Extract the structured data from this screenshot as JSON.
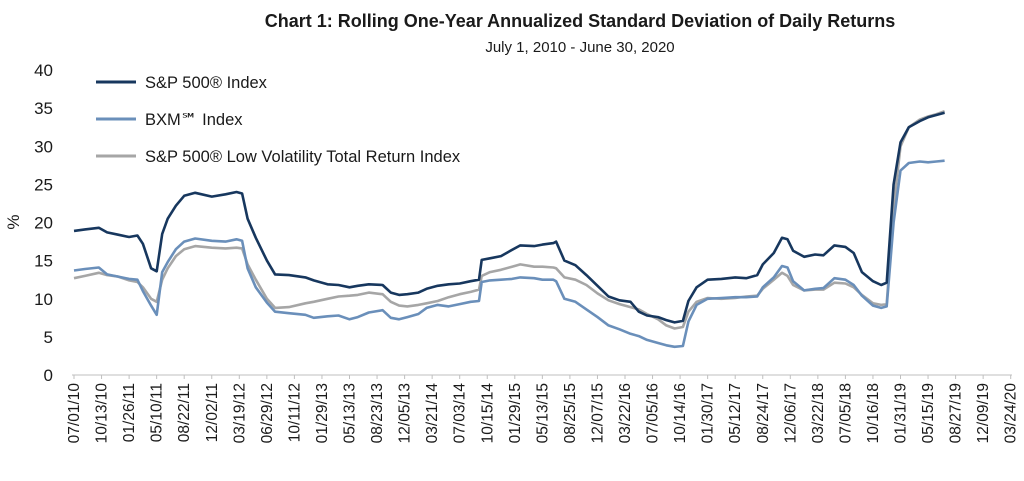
{
  "chart_data": {
    "type": "line",
    "title": "Chart 1: Rolling One-Year Annualized Standard Deviation of Daily Returns",
    "subtitle": "July 1, 2010 - June 30, 2020",
    "ylabel": "%",
    "xlabel": "",
    "ylim": [
      0,
      40
    ],
    "yticks": [
      0,
      5,
      10,
      15,
      20,
      25,
      30,
      35,
      40
    ],
    "grid": false,
    "legend_position": "top-left",
    "x_tick_labels": [
      "07/01/10",
      "10/13/10",
      "01/26/11",
      "05/10/11",
      "08/22/11",
      "12/02/11",
      "03/19/12",
      "06/29/12",
      "10/11/12",
      "01/29/13",
      "05/13/13",
      "08/23/13",
      "12/05/13",
      "03/21/14",
      "07/03/14",
      "10/15/14",
      "01/29/15",
      "05/13/15",
      "08/25/15",
      "12/07/15",
      "03/22/16",
      "07/05/16",
      "10/14/16",
      "01/30/17",
      "05/12/17",
      "08/24/17",
      "12/06/17",
      "03/22/18",
      "07/05/18",
      "10/16/18",
      "01/31/19",
      "05/15/19",
      "08/27/19",
      "12/09/19",
      "03/24/20"
    ],
    "series": [
      {
        "name": "S&P 500® Index",
        "color": "#17375e",
        "points": [
          [
            0,
            18.9
          ],
          [
            0.4,
            19.1
          ],
          [
            0.9,
            19.3
          ],
          [
            1.2,
            18.7
          ],
          [
            1.6,
            18.4
          ],
          [
            2,
            18.1
          ],
          [
            2.3,
            18.3
          ],
          [
            2.5,
            17.2
          ],
          [
            2.8,
            14.0
          ],
          [
            3.0,
            13.6
          ],
          [
            3.2,
            18.5
          ],
          [
            3.4,
            20.5
          ],
          [
            3.7,
            22.2
          ],
          [
            4,
            23.5
          ],
          [
            4.4,
            23.9
          ],
          [
            5,
            23.4
          ],
          [
            5.5,
            23.7
          ],
          [
            5.9,
            24.0
          ],
          [
            6.1,
            23.8
          ],
          [
            6.3,
            20.5
          ],
          [
            6.6,
            18.0
          ],
          [
            7,
            15.0
          ],
          [
            7.3,
            13.2
          ],
          [
            7.8,
            13.1
          ],
          [
            8.4,
            12.8
          ],
          [
            8.7,
            12.4
          ],
          [
            9.2,
            11.9
          ],
          [
            9.6,
            11.8
          ],
          [
            10,
            11.5
          ],
          [
            10.3,
            11.7
          ],
          [
            10.7,
            11.9
          ],
          [
            11.2,
            11.8
          ],
          [
            11.5,
            10.8
          ],
          [
            11.8,
            10.5
          ],
          [
            12.1,
            10.6
          ],
          [
            12.5,
            10.8
          ],
          [
            12.8,
            11.3
          ],
          [
            13.2,
            11.7
          ],
          [
            13.6,
            11.9
          ],
          [
            14,
            12.0
          ],
          [
            14.4,
            12.3
          ],
          [
            14.7,
            12.5
          ],
          [
            14.8,
            15.1
          ],
          [
            15.1,
            15.3
          ],
          [
            15.5,
            15.6
          ],
          [
            15.9,
            16.4
          ],
          [
            16.2,
            17.0
          ],
          [
            16.7,
            16.9
          ],
          [
            17,
            17.1
          ],
          [
            17.4,
            17.3
          ],
          [
            17.5,
            17.5
          ],
          [
            17.8,
            15.0
          ],
          [
            18.2,
            14.4
          ],
          [
            18.6,
            13.1
          ],
          [
            19,
            11.7
          ],
          [
            19.4,
            10.3
          ],
          [
            19.8,
            9.8
          ],
          [
            20.2,
            9.6
          ],
          [
            20.5,
            8.3
          ],
          [
            20.8,
            7.8
          ],
          [
            21.2,
            7.6
          ],
          [
            21.5,
            7.2
          ],
          [
            21.8,
            6.9
          ],
          [
            22.1,
            7.1
          ],
          [
            22.3,
            9.7
          ],
          [
            22.6,
            11.5
          ],
          [
            23,
            12.5
          ],
          [
            23.5,
            12.6
          ],
          [
            24,
            12.8
          ],
          [
            24.4,
            12.7
          ],
          [
            24.8,
            13.1
          ],
          [
            25,
            14.5
          ],
          [
            25.4,
            16.0
          ],
          [
            25.7,
            18.0
          ],
          [
            25.9,
            17.8
          ],
          [
            26.1,
            16.3
          ],
          [
            26.5,
            15.5
          ],
          [
            26.9,
            15.8
          ],
          [
            27.2,
            15.7
          ],
          [
            27.6,
            17.0
          ],
          [
            28,
            16.8
          ],
          [
            28.3,
            16.0
          ],
          [
            28.6,
            13.5
          ],
          [
            29,
            12.3
          ],
          [
            29.3,
            11.8
          ],
          [
            29.5,
            12.1
          ],
          [
            29.75,
            25.0
          ],
          [
            30,
            30.5
          ],
          [
            30.3,
            32.5
          ],
          [
            30.7,
            33.3
          ],
          [
            31,
            33.8
          ],
          [
            31.3,
            34.1
          ],
          [
            31.6,
            34.4
          ]
        ]
      },
      {
        "name": "BXM℠ Index",
        "color": "#6a8fba",
        "points": [
          [
            0,
            13.7
          ],
          [
            0.4,
            13.9
          ],
          [
            0.9,
            14.1
          ],
          [
            1.2,
            13.2
          ],
          [
            1.6,
            12.9
          ],
          [
            2,
            12.6
          ],
          [
            2.3,
            12.5
          ],
          [
            2.5,
            11.0
          ],
          [
            2.8,
            9.1
          ],
          [
            3.0,
            7.9
          ],
          [
            3.2,
            13.5
          ],
          [
            3.4,
            14.8
          ],
          [
            3.7,
            16.5
          ],
          [
            4,
            17.5
          ],
          [
            4.4,
            17.9
          ],
          [
            5,
            17.6
          ],
          [
            5.5,
            17.5
          ],
          [
            5.9,
            17.8
          ],
          [
            6.1,
            17.6
          ],
          [
            6.3,
            14.0
          ],
          [
            6.6,
            11.5
          ],
          [
            7,
            9.5
          ],
          [
            7.3,
            8.3
          ],
          [
            7.8,
            8.1
          ],
          [
            8.4,
            7.9
          ],
          [
            8.7,
            7.5
          ],
          [
            9.2,
            7.7
          ],
          [
            9.6,
            7.8
          ],
          [
            10,
            7.3
          ],
          [
            10.3,
            7.6
          ],
          [
            10.7,
            8.2
          ],
          [
            11.2,
            8.5
          ],
          [
            11.5,
            7.5
          ],
          [
            11.8,
            7.3
          ],
          [
            12.1,
            7.6
          ],
          [
            12.5,
            8.0
          ],
          [
            12.8,
            8.8
          ],
          [
            13.2,
            9.2
          ],
          [
            13.6,
            9.0
          ],
          [
            14,
            9.3
          ],
          [
            14.4,
            9.6
          ],
          [
            14.7,
            9.7
          ],
          [
            14.8,
            12.2
          ],
          [
            15.1,
            12.4
          ],
          [
            15.5,
            12.5
          ],
          [
            15.9,
            12.6
          ],
          [
            16.2,
            12.8
          ],
          [
            16.7,
            12.7
          ],
          [
            17,
            12.5
          ],
          [
            17.4,
            12.5
          ],
          [
            17.5,
            12.3
          ],
          [
            17.8,
            10.0
          ],
          [
            18.2,
            9.6
          ],
          [
            18.6,
            8.6
          ],
          [
            19,
            7.6
          ],
          [
            19.4,
            6.5
          ],
          [
            19.8,
            6.0
          ],
          [
            20.2,
            5.4
          ],
          [
            20.5,
            5.1
          ],
          [
            20.8,
            4.6
          ],
          [
            21.2,
            4.2
          ],
          [
            21.5,
            3.9
          ],
          [
            21.8,
            3.7
          ],
          [
            22.1,
            3.8
          ],
          [
            22.3,
            7.0
          ],
          [
            22.6,
            9.2
          ],
          [
            23,
            10.0
          ],
          [
            23.5,
            10.1
          ],
          [
            24,
            10.2
          ],
          [
            24.4,
            10.2
          ],
          [
            24.8,
            10.3
          ],
          [
            25,
            11.5
          ],
          [
            25.4,
            12.8
          ],
          [
            25.7,
            14.3
          ],
          [
            25.9,
            14.1
          ],
          [
            26.1,
            12.3
          ],
          [
            26.5,
            11.1
          ],
          [
            26.9,
            11.3
          ],
          [
            27.2,
            11.4
          ],
          [
            27.6,
            12.7
          ],
          [
            28,
            12.5
          ],
          [
            28.3,
            11.8
          ],
          [
            28.6,
            10.4
          ],
          [
            29,
            9.1
          ],
          [
            29.3,
            8.8
          ],
          [
            29.5,
            9.0
          ],
          [
            29.75,
            20.0
          ],
          [
            30,
            26.8
          ],
          [
            30.3,
            27.8
          ],
          [
            30.7,
            28.0
          ],
          [
            31,
            27.9
          ],
          [
            31.3,
            28.0
          ],
          [
            31.6,
            28.1
          ]
        ]
      },
      {
        "name": "S&P 500® Low Volatility Total Return Index",
        "color": "#a6a6a6",
        "points": [
          [
            0,
            12.7
          ],
          [
            0.4,
            13.0
          ],
          [
            0.9,
            13.4
          ],
          [
            1.2,
            13.1
          ],
          [
            1.6,
            12.9
          ],
          [
            2,
            12.4
          ],
          [
            2.3,
            12.2
          ],
          [
            2.5,
            11.5
          ],
          [
            2.8,
            10.0
          ],
          [
            3.0,
            9.6
          ],
          [
            3.2,
            12.5
          ],
          [
            3.4,
            14.0
          ],
          [
            3.7,
            15.6
          ],
          [
            4,
            16.5
          ],
          [
            4.4,
            16.9
          ],
          [
            5,
            16.7
          ],
          [
            5.5,
            16.6
          ],
          [
            5.9,
            16.7
          ],
          [
            6.1,
            16.6
          ],
          [
            6.3,
            14.5
          ],
          [
            6.6,
            12.5
          ],
          [
            7,
            10.0
          ],
          [
            7.3,
            8.8
          ],
          [
            7.8,
            8.9
          ],
          [
            8.4,
            9.4
          ],
          [
            8.7,
            9.6
          ],
          [
            9.2,
            10.0
          ],
          [
            9.6,
            10.3
          ],
          [
            10,
            10.4
          ],
          [
            10.3,
            10.5
          ],
          [
            10.7,
            10.8
          ],
          [
            11.2,
            10.6
          ],
          [
            11.5,
            9.6
          ],
          [
            11.8,
            9.1
          ],
          [
            12.1,
            9.0
          ],
          [
            12.5,
            9.2
          ],
          [
            12.8,
            9.4
          ],
          [
            13.2,
            9.7
          ],
          [
            13.6,
            10.2
          ],
          [
            14,
            10.6
          ],
          [
            14.4,
            10.9
          ],
          [
            14.7,
            11.2
          ],
          [
            14.8,
            13.0
          ],
          [
            15.1,
            13.5
          ],
          [
            15.5,
            13.8
          ],
          [
            15.9,
            14.2
          ],
          [
            16.2,
            14.5
          ],
          [
            16.7,
            14.2
          ],
          [
            17,
            14.2
          ],
          [
            17.4,
            14.1
          ],
          [
            17.5,
            14.0
          ],
          [
            17.8,
            12.8
          ],
          [
            18.2,
            12.5
          ],
          [
            18.6,
            11.8
          ],
          [
            19,
            10.7
          ],
          [
            19.4,
            9.8
          ],
          [
            19.8,
            9.3
          ],
          [
            20.2,
            8.9
          ],
          [
            20.5,
            8.6
          ],
          [
            20.8,
            8.0
          ],
          [
            21.2,
            7.3
          ],
          [
            21.5,
            6.5
          ],
          [
            21.8,
            6.1
          ],
          [
            22.1,
            6.3
          ],
          [
            22.3,
            8.3
          ],
          [
            22.6,
            9.6
          ],
          [
            23,
            10.1
          ],
          [
            23.5,
            10.0
          ],
          [
            24,
            10.1
          ],
          [
            24.4,
            10.3
          ],
          [
            24.8,
            10.4
          ],
          [
            25,
            11.3
          ],
          [
            25.4,
            12.5
          ],
          [
            25.7,
            13.4
          ],
          [
            25.9,
            13.0
          ],
          [
            26.1,
            11.8
          ],
          [
            26.5,
            11.1
          ],
          [
            26.9,
            11.2
          ],
          [
            27.2,
            11.2
          ],
          [
            27.6,
            12.1
          ],
          [
            28,
            12.0
          ],
          [
            28.3,
            11.5
          ],
          [
            28.6,
            10.5
          ],
          [
            29,
            9.4
          ],
          [
            29.3,
            9.2
          ],
          [
            29.5,
            9.3
          ],
          [
            29.75,
            22.0
          ],
          [
            30,
            30.0
          ],
          [
            30.3,
            32.5
          ],
          [
            30.7,
            33.5
          ],
          [
            31,
            33.9
          ],
          [
            31.3,
            34.2
          ],
          [
            31.6,
            34.6
          ]
        ]
      }
    ]
  }
}
